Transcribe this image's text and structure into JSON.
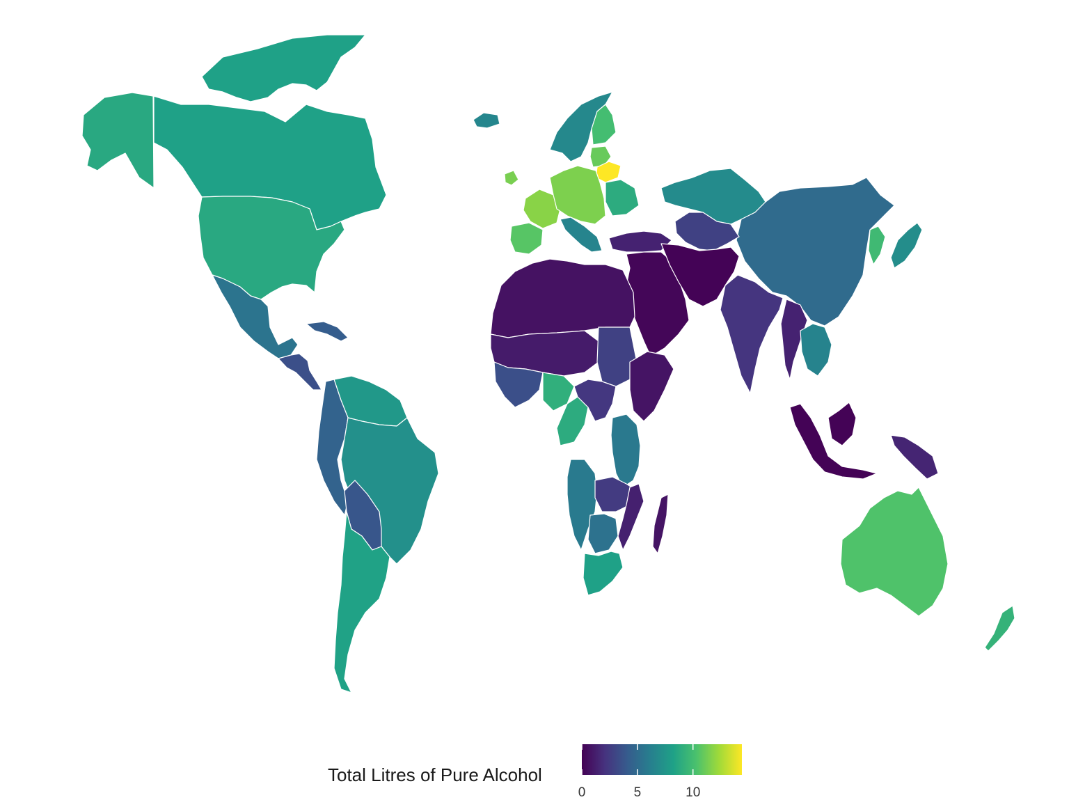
{
  "legend": {
    "title": "Total Litres of Pure Alcohol",
    "ticks": [
      {
        "value": 0,
        "label": "0"
      },
      {
        "value": 5,
        "label": "5"
      },
      {
        "value": 10,
        "label": "10"
      }
    ],
    "min": 0,
    "max": 14.4,
    "colors": [
      "#440154",
      "#46327e",
      "#365c8d",
      "#277f8e",
      "#1fa187",
      "#4ac16d",
      "#a0da39",
      "#fde725"
    ]
  },
  "regions": [
    {
      "name": "canada",
      "value": 8.2
    },
    {
      "name": "greenland",
      "value": 8.2
    },
    {
      "name": "alaska",
      "value": 8.7
    },
    {
      "name": "usa",
      "value": 8.7
    },
    {
      "name": "mexico",
      "value": 5.5
    },
    {
      "name": "central-america",
      "value": 3.5
    },
    {
      "name": "cuba",
      "value": 4.2
    },
    {
      "name": "colombia-peru",
      "value": 4.5
    },
    {
      "name": "venezuela-guianas",
      "value": 7.7
    },
    {
      "name": "brazil",
      "value": 7.2
    },
    {
      "name": "bolivia-paraguay",
      "value": 3.8
    },
    {
      "name": "argentina-chile",
      "value": 8.3
    },
    {
      "name": "iceland",
      "value": 6.6
    },
    {
      "name": "norway-sweden",
      "value": 6.7
    },
    {
      "name": "finland",
      "value": 10.0
    },
    {
      "name": "baltics",
      "value": 11.0
    },
    {
      "name": "belarus",
      "value": 14.4
    },
    {
      "name": "ireland",
      "value": 11.4
    },
    {
      "name": "france",
      "value": 11.8
    },
    {
      "name": "central-europe",
      "value": 11.5
    },
    {
      "name": "iberia",
      "value": 10.6
    },
    {
      "name": "italy-balkans",
      "value": 6.5
    },
    {
      "name": "ukraine",
      "value": 8.9
    },
    {
      "name": "russia-kazakhstan",
      "value": 6.9
    },
    {
      "name": "turkey-caucasus",
      "value": 1.4
    },
    {
      "name": "central-asia",
      "value": 2.8
    },
    {
      "name": "china-mongolia",
      "value": 5.0
    },
    {
      "name": "korea",
      "value": 9.8
    },
    {
      "name": "japan",
      "value": 7.0
    },
    {
      "name": "north-africa",
      "value": 0.7
    },
    {
      "name": "middle-east",
      "value": 0.2
    },
    {
      "name": "iran-afghanistan-pakistan",
      "value": 0.1
    },
    {
      "name": "india",
      "value": 2.2
    },
    {
      "name": "southeast-asia",
      "value": 1.4
    },
    {
      "name": "thailand-vietnam",
      "value": 6.4
    },
    {
      "name": "indonesia",
      "value": 0.1
    },
    {
      "name": "papua",
      "value": 1.5
    },
    {
      "name": "sahel",
      "value": 1.1
    },
    {
      "name": "sudan",
      "value": 2.8
    },
    {
      "name": "horn-of-africa",
      "value": 0.8
    },
    {
      "name": "west-africa-coast",
      "value": 3.5
    },
    {
      "name": "nigeria",
      "value": 9.1
    },
    {
      "name": "central-africa",
      "value": 2.3
    },
    {
      "name": "cameroon-gabon",
      "value": 8.9
    },
    {
      "name": "east-africa",
      "value": 5.8
    },
    {
      "name": "angola-namibia",
      "value": 5.9
    },
    {
      "name": "zambia-zimbabwe",
      "value": 2.5
    },
    {
      "name": "mozambique",
      "value": 1.3
    },
    {
      "name": "botswana",
      "value": 5.4
    },
    {
      "name": "south-africa",
      "value": 8.2
    },
    {
      "name": "madagascar",
      "value": 0.8
    },
    {
      "name": "australia",
      "value": 10.4
    },
    {
      "name": "new-zealand",
      "value": 9.3
    }
  ]
}
